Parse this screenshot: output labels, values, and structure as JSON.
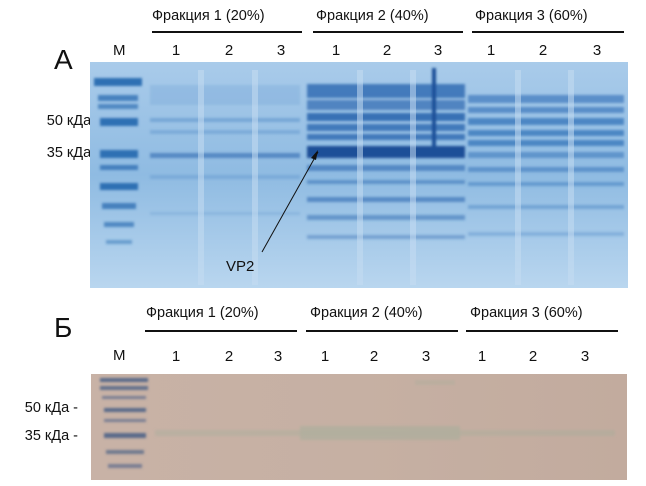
{
  "panels": [
    {
      "letter": "А",
      "marker_label": "М",
      "fractions": [
        "Фракция 1 (20%)",
        "Фракция 2 (40%)",
        "Фракция 3 (60%)"
      ],
      "lanes": [
        "1",
        "2",
        "3",
        "1",
        "2",
        "3",
        "1",
        "2",
        "3"
      ],
      "mw_labels": [
        "50 кДа -",
        "35 кДа -"
      ],
      "annotation": "VP2",
      "gel_color": "#7fb2dc"
    },
    {
      "letter": "Б",
      "marker_label": "М",
      "fractions": [
        "Фракция 1 (20%)",
        "Фракция 2 (40%)",
        "Фракция 3 (60%)"
      ],
      "lanes": [
        "1",
        "2",
        "3",
        "1",
        "2",
        "3",
        "1",
        "2",
        "3"
      ],
      "mw_labels": [
        "50 кДа -",
        "35 кДа -"
      ],
      "gel_color": "#c7b0a4"
    }
  ]
}
